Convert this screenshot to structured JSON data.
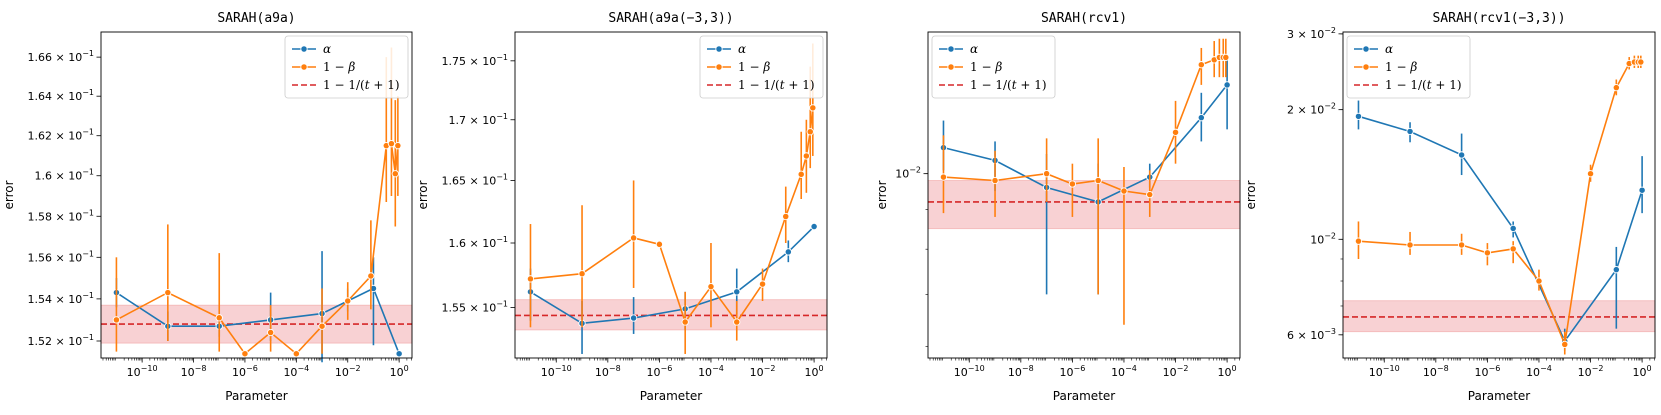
{
  "colors": {
    "alpha": "#1f77b4",
    "beta": "#ff7f0e",
    "ref": "#d62728",
    "band": "#f4b8bb"
  },
  "chart_data": [
    {
      "type": "line",
      "title": "SARAH(a9a)",
      "xlabel": "Parameter",
      "ylabel": "error",
      "xscale": "log",
      "yscale": "log",
      "xlim": [
        -11.6,
        0.5
      ],
      "ylim": [
        0.1512,
        0.1673
      ],
      "xticks": [
        {
          "v": -10,
          "e": "−10"
        },
        {
          "v": -8,
          "e": "−8"
        },
        {
          "v": -6,
          "e": "−6"
        },
        {
          "v": -4,
          "e": "−4"
        },
        {
          "v": -2,
          "e": "−2"
        },
        {
          "v": 0,
          "e": "0"
        }
      ],
      "yticks": [
        {
          "v": 0.152,
          "m": "1.52"
        },
        {
          "v": 0.154,
          "m": "1.54"
        },
        {
          "v": 0.156,
          "m": "1.56"
        },
        {
          "v": 0.158,
          "m": "1.58"
        },
        {
          "v": 0.16,
          "m": "1.6"
        },
        {
          "v": 0.162,
          "m": "1.62"
        },
        {
          "v": 0.164,
          "m": "1.64"
        },
        {
          "v": 0.166,
          "m": "1.66"
        }
      ],
      "ytick_exp": "−1",
      "legend": "top-right",
      "reference": {
        "y": 0.1528,
        "band": [
          0.1519,
          0.1537
        ]
      },
      "series": [
        {
          "name": "α",
          "points": [
            {
              "x": -11,
              "y": 0.1543,
              "lo": 0.1536,
              "hi": 0.155
            },
            {
              "x": -9,
              "y": 0.1527,
              "lo": 0.152,
              "hi": 0.1534
            },
            {
              "x": -7,
              "y": 0.1527,
              "lo": 0.1522,
              "hi": 0.1532
            },
            {
              "x": -5,
              "y": 0.153,
              "lo": 0.152,
              "hi": 0.1543
            },
            {
              "x": -3,
              "y": 0.1533,
              "lo": 0.151,
              "hi": 0.1563
            },
            {
              "x": -2,
              "y": 0.1539,
              "lo": 0.1534,
              "hi": 0.1545
            },
            {
              "x": -1,
              "y": 0.1545,
              "lo": 0.1518,
              "hi": 0.156
            },
            {
              "x": 0,
              "y": 0.1514,
              "lo": 0.1514,
              "hi": 0.1514
            }
          ]
        },
        {
          "name": "1 − β",
          "points": [
            {
              "x": -11,
              "y": 0.153,
              "lo": 0.1515,
              "hi": 0.156
            },
            {
              "x": -9,
              "y": 0.1543,
              "lo": 0.152,
              "hi": 0.1576
            },
            {
              "x": -7,
              "y": 0.1531,
              "lo": 0.1515,
              "hi": 0.1562
            },
            {
              "x": -6,
              "y": 0.1514,
              "lo": 0.1514,
              "hi": 0.1514
            },
            {
              "x": -5,
              "y": 0.1524,
              "lo": 0.1515,
              "hi": 0.1537
            },
            {
              "x": -4,
              "y": 0.1514,
              "lo": 0.1514,
              "hi": 0.1514
            },
            {
              "x": -3,
              "y": 0.1527,
              "lo": 0.1514,
              "hi": 0.1545
            },
            {
              "x": -2,
              "y": 0.1539,
              "lo": 0.153,
              "hi": 0.1548
            },
            {
              "x": -1.1,
              "y": 0.1551,
              "lo": 0.1535,
              "hi": 0.1578
            },
            {
              "x": -0.5,
              "y": 0.1615,
              "lo": 0.1587,
              "hi": 0.166
            },
            {
              "x": -0.3,
              "y": 0.1616,
              "lo": 0.159,
              "hi": 0.1665
            },
            {
              "x": -0.15,
              "y": 0.1601,
              "lo": 0.1575,
              "hi": 0.1638
            },
            {
              "x": -0.05,
              "y": 0.1615,
              "lo": 0.159,
              "hi": 0.164
            }
          ]
        }
      ]
    },
    {
      "type": "line",
      "title": "SARAH(a9a(−3,3))",
      "xlabel": "Parameter",
      "ylabel": "error",
      "xscale": "log",
      "yscale": "log",
      "xlim": [
        -11.6,
        0.5
      ],
      "ylim": [
        0.1512,
        0.1775
      ],
      "xticks": [
        {
          "v": -10,
          "e": "−10"
        },
        {
          "v": -8,
          "e": "−8"
        },
        {
          "v": -6,
          "e": "−6"
        },
        {
          "v": -4,
          "e": "−4"
        },
        {
          "v": -2,
          "e": "−2"
        },
        {
          "v": 0,
          "e": "0"
        }
      ],
      "yticks": [
        {
          "v": 0.155,
          "m": "1.55"
        },
        {
          "v": 0.16,
          "m": "1.6"
        },
        {
          "v": 0.165,
          "m": "1.65"
        },
        {
          "v": 0.17,
          "m": "1.7"
        },
        {
          "v": 0.175,
          "m": "1.75"
        }
      ],
      "ytick_exp": "−1",
      "legend": "top-right",
      "reference": {
        "y": 0.1544,
        "band": [
          0.1533,
          0.1556
        ]
      },
      "series": [
        {
          "name": "α",
          "points": [
            {
              "x": -11,
              "y": 0.1562,
              "lo": 0.154,
              "hi": 0.158
            },
            {
              "x": -9,
              "y": 0.1538,
              "lo": 0.1515,
              "hi": 0.1555
            },
            {
              "x": -7,
              "y": 0.1542,
              "lo": 0.153,
              "hi": 0.1558
            },
            {
              "x": -5,
              "y": 0.1549,
              "lo": 0.1533,
              "hi": 0.1562
            },
            {
              "x": -3,
              "y": 0.1562,
              "lo": 0.1545,
              "hi": 0.158
            },
            {
              "x": -1,
              "y": 0.1593,
              "lo": 0.1585,
              "hi": 0.1602
            },
            {
              "x": 0,
              "y": 0.1613,
              "lo": 0.1613,
              "hi": 0.1613
            }
          ]
        },
        {
          "name": "1 − β",
          "points": [
            {
              "x": -11,
              "y": 0.1572,
              "lo": 0.1535,
              "hi": 0.1615
            },
            {
              "x": -9,
              "y": 0.1576,
              "lo": 0.1535,
              "hi": 0.163
            },
            {
              "x": -7,
              "y": 0.1604,
              "lo": 0.1565,
              "hi": 0.165
            },
            {
              "x": -6,
              "y": 0.1599,
              "lo": 0.1599,
              "hi": 0.1599
            },
            {
              "x": -5,
              "y": 0.1539,
              "lo": 0.1515,
              "hi": 0.1562
            },
            {
              "x": -4,
              "y": 0.1566,
              "lo": 0.1535,
              "hi": 0.16
            },
            {
              "x": -3,
              "y": 0.1539,
              "lo": 0.1525,
              "hi": 0.1555
            },
            {
              "x": -2,
              "y": 0.1568,
              "lo": 0.1555,
              "hi": 0.158
            },
            {
              "x": -1.1,
              "y": 0.1621,
              "lo": 0.16,
              "hi": 0.1645
            },
            {
              "x": -0.5,
              "y": 0.1655,
              "lo": 0.1635,
              "hi": 0.169
            },
            {
              "x": -0.3,
              "y": 0.167,
              "lo": 0.164,
              "hi": 0.17
            },
            {
              "x": -0.15,
              "y": 0.169,
              "lo": 0.166,
              "hi": 0.1745
            },
            {
              "x": -0.05,
              "y": 0.171,
              "lo": 0.167,
              "hi": 0.1765
            }
          ]
        }
      ]
    },
    {
      "type": "line",
      "title": "SARAH(rcv1)",
      "xlabel": "Parameter",
      "ylabel": "error",
      "xscale": "log",
      "yscale": "log",
      "xlim": [
        -11.6,
        0.5
      ],
      "ylim": [
        0.0058,
        0.0152
      ],
      "xticks": [
        {
          "v": -10,
          "e": "−10"
        },
        {
          "v": -8,
          "e": "−8"
        },
        {
          "v": -6,
          "e": "−6"
        },
        {
          "v": -4,
          "e": "−4"
        },
        {
          "v": -2,
          "e": "−2"
        },
        {
          "v": 0,
          "e": "0"
        }
      ],
      "yticks": [
        {
          "v": 0.01,
          "m": "",
          "e": "−2"
        }
      ],
      "ytick_exp": "−2",
      "legend": "top-left",
      "reference": {
        "y": 0.0092,
        "band": [
          0.0085,
          0.0098
        ]
      },
      "series": [
        {
          "name": "α",
          "points": [
            {
              "x": -11,
              "y": 0.0108,
              "lo": 0.0101,
              "hi": 0.0117
            },
            {
              "x": -9,
              "y": 0.0104,
              "lo": 0.0095,
              "hi": 0.011
            },
            {
              "x": -7,
              "y": 0.0096,
              "lo": 0.007,
              "hi": 0.0106
            },
            {
              "x": -5,
              "y": 0.0092,
              "lo": 0.007,
              "hi": 0.0103
            },
            {
              "x": -3,
              "y": 0.0099,
              "lo": 0.0096,
              "hi": 0.0103
            },
            {
              "x": -1,
              "y": 0.0118,
              "lo": 0.011,
              "hi": 0.0127
            },
            {
              "x": 0,
              "y": 0.013,
              "lo": 0.0114,
              "hi": 0.0141
            }
          ]
        },
        {
          "name": "1 − β",
          "points": [
            {
              "x": -11,
              "y": 0.0099,
              "lo": 0.0089,
              "hi": 0.0112
            },
            {
              "x": -9,
              "y": 0.0098,
              "lo": 0.0088,
              "hi": 0.0107
            },
            {
              "x": -7,
              "y": 0.01,
              "lo": 0.0092,
              "hi": 0.0111
            },
            {
              "x": -6,
              "y": 0.0097,
              "lo": 0.0088,
              "hi": 0.0103
            },
            {
              "x": -5,
              "y": 0.0098,
              "lo": 0.007,
              "hi": 0.0111
            },
            {
              "x": -4,
              "y": 0.0095,
              "lo": 0.0064,
              "hi": 0.0102
            },
            {
              "x": -3,
              "y": 0.0094,
              "lo": 0.0088,
              "hi": 0.0101
            },
            {
              "x": -2,
              "y": 0.0113,
              "lo": 0.0103,
              "hi": 0.0124
            },
            {
              "x": -1,
              "y": 0.0138,
              "lo": 0.013,
              "hi": 0.0145
            },
            {
              "x": -0.5,
              "y": 0.014,
              "lo": 0.0133,
              "hi": 0.0148
            },
            {
              "x": -0.3,
              "y": 0.0141,
              "lo": 0.0133,
              "hi": 0.0149
            },
            {
              "x": -0.15,
              "y": 0.0141,
              "lo": 0.0133,
              "hi": 0.0149
            },
            {
              "x": -0.05,
              "y": 0.0141,
              "lo": 0.0133,
              "hi": 0.0149
            }
          ]
        }
      ]
    },
    {
      "type": "line",
      "title": "SARAH(rcv1(−3,3))",
      "xlabel": "Parameter",
      "ylabel": "error",
      "xscale": "log",
      "yscale": "log",
      "xlim": [
        -11.6,
        0.5
      ],
      "ylim": [
        0.0053,
        0.0303
      ],
      "xticks": [
        {
          "v": -10,
          "e": "−10"
        },
        {
          "v": -8,
          "e": "−8"
        },
        {
          "v": -6,
          "e": "−6"
        },
        {
          "v": -4,
          "e": "−4"
        },
        {
          "v": -2,
          "e": "−2"
        },
        {
          "v": 0,
          "e": "0"
        }
      ],
      "yticks": [
        {
          "v": 0.006,
          "m": "6",
          "e": "−3"
        },
        {
          "v": 0.01,
          "m": "",
          "e": "−2"
        },
        {
          "v": 0.02,
          "m": "2",
          "e": "−2"
        },
        {
          "v": 0.03,
          "m": "3",
          "e": "−2"
        }
      ],
      "ytick_exp": "mixed",
      "legend": "top-left",
      "reference": {
        "y": 0.0066,
        "band": [
          0.0061,
          0.0072
        ]
      },
      "series": [
        {
          "name": "α",
          "points": [
            {
              "x": -11,
              "y": 0.0193,
              "lo": 0.018,
              "hi": 0.021
            },
            {
              "x": -9,
              "y": 0.0178,
              "lo": 0.0168,
              "hi": 0.0187
            },
            {
              "x": -7,
              "y": 0.0157,
              "lo": 0.0141,
              "hi": 0.0176
            },
            {
              "x": -5,
              "y": 0.0106,
              "lo": 0.0101,
              "hi": 0.011
            },
            {
              "x": -3,
              "y": 0.0058,
              "lo": 0.0055,
              "hi": 0.0062
            },
            {
              "x": -1,
              "y": 0.0085,
              "lo": 0.0062,
              "hi": 0.0096
            },
            {
              "x": 0,
              "y": 0.013,
              "lo": 0.0115,
              "hi": 0.0156
            }
          ]
        },
        {
          "name": "1 − β",
          "points": [
            {
              "x": -11,
              "y": 0.0099,
              "lo": 0.009,
              "hi": 0.011
            },
            {
              "x": -9,
              "y": 0.0097,
              "lo": 0.0092,
              "hi": 0.0104
            },
            {
              "x": -7,
              "y": 0.0097,
              "lo": 0.0092,
              "hi": 0.0103
            },
            {
              "x": -6,
              "y": 0.0093,
              "lo": 0.0087,
              "hi": 0.0098
            },
            {
              "x": -5,
              "y": 0.0095,
              "lo": 0.0088,
              "hi": 0.0099
            },
            {
              "x": -4,
              "y": 0.008,
              "lo": 0.0076,
              "hi": 0.0085
            },
            {
              "x": -3,
              "y": 0.0057,
              "lo": 0.0054,
              "hi": 0.0061
            },
            {
              "x": -2,
              "y": 0.0142,
              "lo": 0.0136,
              "hi": 0.0149
            },
            {
              "x": -1,
              "y": 0.0225,
              "lo": 0.0216,
              "hi": 0.0235
            },
            {
              "x": -0.5,
              "y": 0.0256,
              "lo": 0.0248,
              "hi": 0.0265
            },
            {
              "x": -0.3,
              "y": 0.0258,
              "lo": 0.025,
              "hi": 0.0267
            },
            {
              "x": -0.15,
              "y": 0.0258,
              "lo": 0.025,
              "hi": 0.0267
            },
            {
              "x": -0.05,
              "y": 0.0258,
              "lo": 0.025,
              "hi": 0.0267
            }
          ]
        }
      ]
    }
  ],
  "legend_entries": {
    "alpha": "α",
    "beta_one": "1 − ",
    "beta_sym": "β",
    "ref_one": "1 − 1/(",
    "ref_t": "t",
    "ref_rest": " + 1)"
  }
}
